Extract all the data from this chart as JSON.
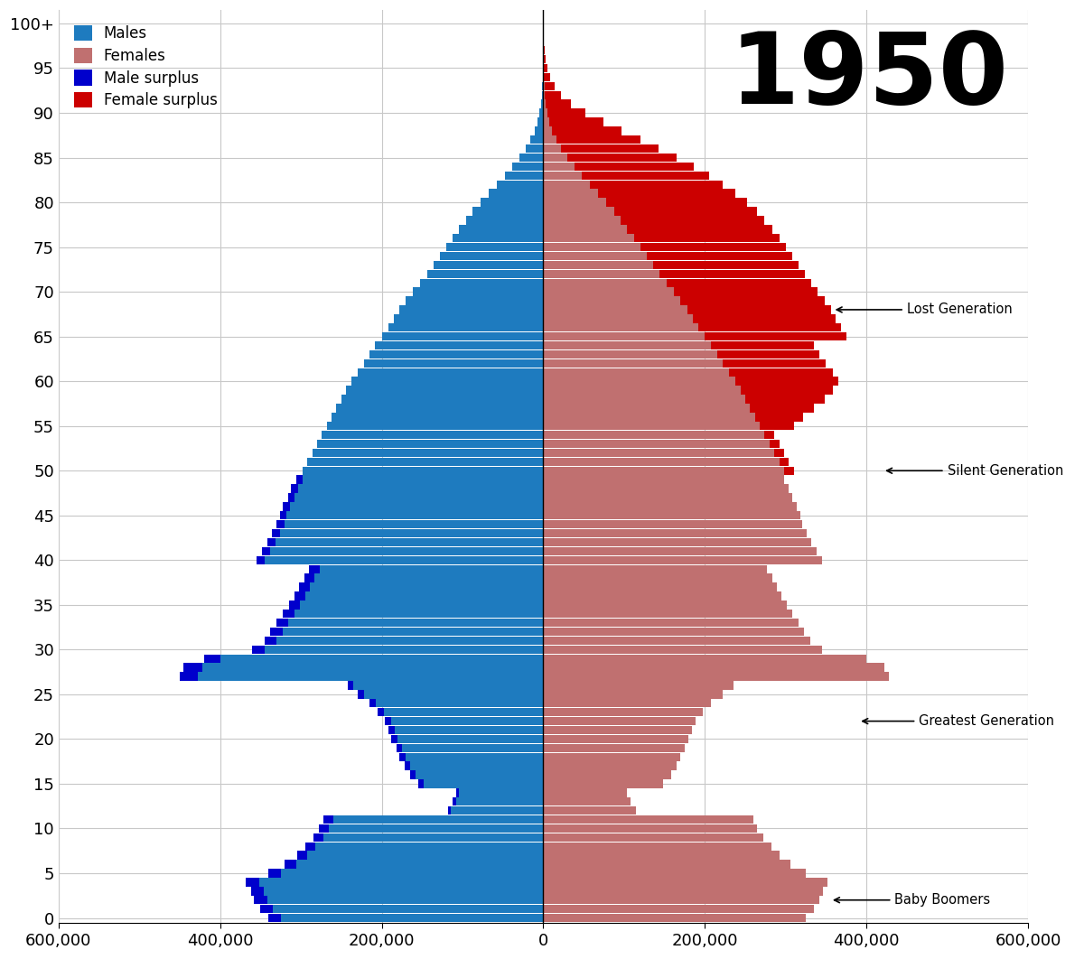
{
  "title": "1950",
  "title_fontsize": 80,
  "background_color": "#ffffff",
  "grid_color": "#c8c8c8",
  "male_color": "#1e7bbf",
  "female_color": "#c07070",
  "male_surplus_color": "#0000cc",
  "female_surplus_color": "#cc0000",
  "xlim": 600000,
  "ages": [
    0,
    1,
    2,
    3,
    4,
    5,
    6,
    7,
    8,
    9,
    10,
    11,
    12,
    13,
    14,
    15,
    16,
    17,
    18,
    19,
    20,
    21,
    22,
    23,
    24,
    25,
    26,
    27,
    28,
    29,
    30,
    31,
    32,
    33,
    34,
    35,
    36,
    37,
    38,
    39,
    40,
    41,
    42,
    43,
    44,
    45,
    46,
    47,
    48,
    49,
    50,
    51,
    52,
    53,
    54,
    55,
    56,
    57,
    58,
    59,
    60,
    61,
    62,
    63,
    64,
    65,
    66,
    67,
    68,
    69,
    70,
    71,
    72,
    73,
    74,
    75,
    76,
    77,
    78,
    79,
    80,
    81,
    82,
    83,
    84,
    85,
    86,
    87,
    88,
    89,
    90,
    91,
    92,
    93,
    94,
    95,
    96,
    97,
    98,
    99,
    100
  ],
  "males": [
    340000,
    350000,
    358000,
    362000,
    368000,
    340000,
    320000,
    305000,
    295000,
    285000,
    278000,
    272000,
    118000,
    112000,
    108000,
    155000,
    165000,
    172000,
    178000,
    182000,
    188000,
    192000,
    196000,
    205000,
    215000,
    230000,
    242000,
    450000,
    445000,
    420000,
    360000,
    345000,
    338000,
    330000,
    322000,
    315000,
    308000,
    302000,
    296000,
    290000,
    355000,
    348000,
    342000,
    336000,
    330000,
    326000,
    322000,
    316000,
    312000,
    306000,
    298000,
    292000,
    286000,
    280000,
    274000,
    268000,
    262000,
    256000,
    250000,
    244000,
    238000,
    230000,
    222000,
    215000,
    208000,
    200000,
    192000,
    185000,
    178000,
    170000,
    162000,
    153000,
    144000,
    136000,
    128000,
    120000,
    112000,
    104000,
    96000,
    88000,
    78000,
    68000,
    58000,
    48000,
    39000,
    30000,
    22000,
    16000,
    11000,
    7500,
    5000,
    3200,
    2000,
    1300,
    800,
    500,
    280,
    150,
    75,
    35,
    15
  ],
  "females": [
    325000,
    335000,
    342000,
    346000,
    352000,
    325000,
    306000,
    292000,
    282000,
    272000,
    265000,
    260000,
    115000,
    108000,
    104000,
    148000,
    158000,
    165000,
    170000,
    175000,
    180000,
    184000,
    188000,
    197000,
    207000,
    222000,
    235000,
    428000,
    422000,
    400000,
    345000,
    330000,
    323000,
    316000,
    308000,
    301000,
    295000,
    289000,
    283000,
    277000,
    345000,
    338000,
    332000,
    326000,
    320000,
    318000,
    314000,
    308000,
    304000,
    298000,
    310000,
    304000,
    298000,
    292000,
    286000,
    310000,
    322000,
    335000,
    348000,
    358000,
    365000,
    358000,
    350000,
    342000,
    335000,
    375000,
    368000,
    362000,
    356000,
    348000,
    340000,
    332000,
    324000,
    316000,
    308000,
    300000,
    292000,
    283000,
    274000,
    264000,
    252000,
    238000,
    222000,
    205000,
    186000,
    165000,
    143000,
    120000,
    97000,
    74000,
    52000,
    34000,
    22000,
    14000,
    8500,
    5000,
    2800,
    1500,
    700,
    300,
    120
  ]
}
